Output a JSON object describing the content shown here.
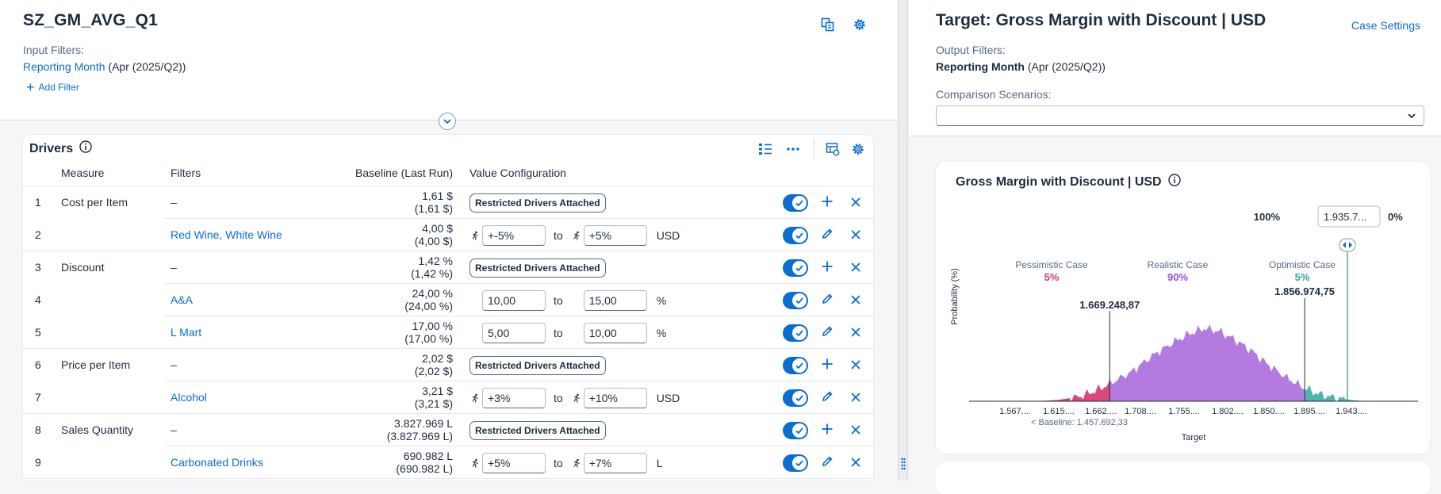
{
  "header": {
    "title": "SZ_GM_AVG_Q1",
    "input_filters_label": "Input Filters:",
    "filter_name": "Reporting Month",
    "filter_value": "(Apr (2025/Q2))",
    "add_filter": "Add Filter",
    "icons": [
      "copy-icon",
      "gear-icon"
    ]
  },
  "drivers": {
    "title": "Drivers",
    "columns": {
      "measure": "Measure",
      "filters": "Filters",
      "baseline": "Baseline (Last Run)",
      "value_config": "Value Configuration"
    },
    "rows": [
      {
        "num": "1",
        "measure": "Cost per Item",
        "filter": "–",
        "base1": "1,61 $",
        "base2": "(1,61 $)",
        "pill": "Restricted Drivers Attached",
        "action": "add"
      },
      {
        "num": "2",
        "measure": "",
        "filter": "Red Wine, White Wine",
        "base1": "4,00 $",
        "base2": "(4,00 $)",
        "from": "+-5%",
        "to": "+5%",
        "unit": "USD",
        "runner": true,
        "action": "edit"
      },
      {
        "num": "3",
        "measure": "Discount",
        "filter": "–",
        "base1": "1,42 %",
        "base2": "(1,42 %)",
        "pill": "Restricted Drivers Attached",
        "action": "add"
      },
      {
        "num": "4",
        "measure": "",
        "filter": "A&A",
        "base1": "24,00 %",
        "base2": "(24,00 %)",
        "from": "10,00",
        "to": "15,00",
        "unit": "%",
        "runner": false,
        "action": "edit"
      },
      {
        "num": "5",
        "measure": "",
        "filter": "L Mart",
        "base1": "17,00 %",
        "base2": "(17,00 %)",
        "from": "5,00",
        "to": "10,00",
        "unit": "%",
        "runner": false,
        "action": "edit"
      },
      {
        "num": "6",
        "measure": "Price per Item",
        "filter": "–",
        "base1": "2,02 $",
        "base2": "(2,02 $)",
        "pill": "Restricted Drivers Attached",
        "action": "add"
      },
      {
        "num": "7",
        "measure": "",
        "filter": "Alcohol",
        "base1": "3,21 $",
        "base2": "(3,21 $)",
        "from": "+3%",
        "to": "+10%",
        "unit": "USD",
        "runner": true,
        "action": "edit"
      },
      {
        "num": "8",
        "measure": "Sales Quantity",
        "filter": "–",
        "base1": "3.827.969 L",
        "base2": "(3.827.969 L)",
        "pill": "Restricted Drivers Attached",
        "action": "add"
      },
      {
        "num": "9",
        "measure": "",
        "filter": "Carbonated Drinks",
        "base1": "690.982 L",
        "base2": "(690.982 L)",
        "from": "+5%",
        "to": "+7%",
        "unit": "L",
        "runner": true,
        "action": "edit"
      }
    ],
    "to_label": "to"
  },
  "target": {
    "title": "Target: Gross Margin with Discount | USD",
    "case_settings": "Case Settings",
    "output_filters_label": "Output Filters:",
    "filter_name": "Reporting Month",
    "filter_value": "(Apr (2025/Q2))",
    "comparison_label": "Comparison Scenarios:",
    "comparison_value": ""
  },
  "chart": {
    "title": "Gross Margin with Discount | USD",
    "pct_left": "100%",
    "input_value": "1.935.7...",
    "pct_right": "0%",
    "ylabel": "Probability (%)",
    "xlabel": "Target",
    "baseline_note": "< Baseline: 1.457.692,33",
    "cases": [
      {
        "name": "Pessimistic Case",
        "pct": "5%",
        "color": "#d9346c"
      },
      {
        "name": "Realistic Case",
        "pct": "90%",
        "color": "#9a4fd6"
      },
      {
        "name": "Optimistic Case",
        "pct": "5%",
        "color": "#2ea89a"
      }
    ],
    "marker_low": "1.669.248,87",
    "marker_high": "1.856.974,75",
    "ticks": [
      "1.567....",
      "1.615....",
      "1.662....",
      "1.708....",
      "1.755....",
      "1.802....",
      "1.850....",
      "1.895....",
      "1.943...."
    ]
  },
  "chart_data": {
    "type": "area",
    "title": "Gross Margin with Discount | USD",
    "xlabel": "Target",
    "ylabel": "Probability (%)",
    "x_ticks": [
      "1.567....",
      "1.615....",
      "1.662....",
      "1.708....",
      "1.755....",
      "1.802....",
      "1.850....",
      "1.895....",
      "1.943...."
    ],
    "markers": [
      1669248.87,
      1856974.75
    ],
    "series": [
      {
        "name": "Pessimistic Case",
        "share": 5
      },
      {
        "name": "Realistic Case",
        "share": 90
      },
      {
        "name": "Optimistic Case",
        "share": 5
      }
    ],
    "x": [
      1600000,
      1620000,
      1640000,
      1655000,
      1669248,
      1690000,
      1710000,
      1730000,
      1745000,
      1760000,
      1775000,
      1790000,
      1805000,
      1820000,
      1840000,
      1856974,
      1870000,
      1885000,
      1900000,
      1915000
    ],
    "y": [
      0,
      2,
      6,
      14,
      24,
      40,
      62,
      80,
      92,
      100,
      96,
      84,
      70,
      52,
      32,
      18,
      10,
      5,
      2,
      0
    ]
  }
}
